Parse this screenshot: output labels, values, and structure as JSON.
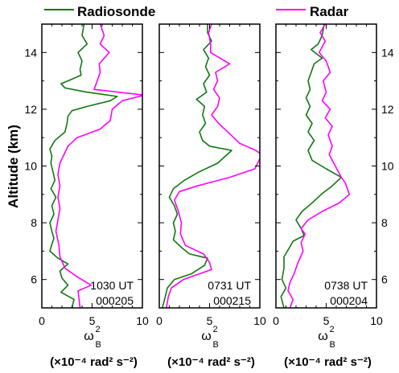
{
  "legend": {
    "radiosonde_label": "Radiosonde",
    "radar_label": "Radar",
    "radiosonde_color": "#117711",
    "radar_color": "#ff00ff"
  },
  "y_axis_label": "Altitude (km)",
  "chart_data": [
    {
      "type": "line",
      "time_label": "1030 UT",
      "date_label": "000205",
      "xlim": [
        0,
        10
      ],
      "ylim": [
        5,
        15
      ],
      "x_ticks": [
        "0",
        "5",
        "10"
      ],
      "y_ticks": [
        "6",
        "8",
        "10",
        "12",
        "14"
      ],
      "x_label_symbol": "ω",
      "x_label_sup": "2",
      "x_label_sub": "B",
      "x_label_units": "(×10⁻⁴ rad² s⁻²)",
      "series": [
        {
          "name": "Radiosonde",
          "points": [
            [
              4.2,
              15
            ],
            [
              4.0,
              14.6
            ],
            [
              4.5,
              14.3
            ],
            [
              3.6,
              14.0
            ],
            [
              4.0,
              13.7
            ],
            [
              3.8,
              13.4
            ],
            [
              3.9,
              13.2
            ],
            [
              2.6,
              13.0
            ],
            [
              1.9,
              12.9
            ],
            [
              2.3,
              12.75
            ],
            [
              4.5,
              12.6
            ],
            [
              7.5,
              12.45
            ],
            [
              6.8,
              12.3
            ],
            [
              4.5,
              12.1
            ],
            [
              3.0,
              11.95
            ],
            [
              2.6,
              11.75
            ],
            [
              2.5,
              11.5
            ],
            [
              2.3,
              11.2
            ],
            [
              1.3,
              10.9
            ],
            [
              0.8,
              10.6
            ],
            [
              1.0,
              10.35
            ],
            [
              0.9,
              10.1
            ],
            [
              1.1,
              9.8
            ],
            [
              1.3,
              9.5
            ],
            [
              0.9,
              9.2
            ],
            [
              1.4,
              8.9
            ],
            [
              1.0,
              8.6
            ],
            [
              1.2,
              8.3
            ],
            [
              0.8,
              8.0
            ],
            [
              1.0,
              7.7
            ],
            [
              1.2,
              7.45
            ],
            [
              1.0,
              7.25
            ],
            [
              0.8,
              7.0
            ],
            [
              1.6,
              6.75
            ],
            [
              2.6,
              6.55
            ],
            [
              1.8,
              6.3
            ],
            [
              2.0,
              6.05
            ],
            [
              2.6,
              5.8
            ],
            [
              1.9,
              5.55
            ],
            [
              3.2,
              5.3
            ],
            [
              3.0,
              5.0
            ]
          ]
        },
        {
          "name": "Radar",
          "points": [
            [
              5.8,
              15
            ],
            [
              6.2,
              14.6
            ],
            [
              5.8,
              14.3
            ],
            [
              6.7,
              14.0
            ],
            [
              5.7,
              13.6
            ],
            [
              5.8,
              13.3
            ],
            [
              5.5,
              13.0
            ],
            [
              5.2,
              12.7
            ],
            [
              10.2,
              12.5
            ],
            [
              8.0,
              12.3
            ],
            [
              7.0,
              12.0
            ],
            [
              6.8,
              11.6
            ],
            [
              5.8,
              11.3
            ],
            [
              3.5,
              11.0
            ],
            [
              2.6,
              10.7
            ],
            [
              2.2,
              10.4
            ],
            [
              1.8,
              10.1
            ],
            [
              1.6,
              9.7
            ],
            [
              1.8,
              9.3
            ],
            [
              1.6,
              8.9
            ],
            [
              1.8,
              8.5
            ],
            [
              1.6,
              8.1
            ],
            [
              1.4,
              7.7
            ],
            [
              1.7,
              7.2
            ],
            [
              1.8,
              6.8
            ],
            [
              2.3,
              6.4
            ],
            [
              3.5,
              6.1
            ],
            [
              4.9,
              5.8
            ],
            [
              3.6,
              5.6
            ],
            [
              3.7,
              5.3
            ],
            [
              3.8,
              5.0
            ]
          ]
        }
      ]
    },
    {
      "type": "line",
      "time_label": "0731 UT",
      "date_label": "000215",
      "xlim": [
        0,
        10
      ],
      "ylim": [
        5,
        15
      ],
      "x_ticks": [
        "0",
        "5",
        "10"
      ],
      "y_ticks": [
        "6",
        "8",
        "10",
        "12",
        "14"
      ],
      "x_label_symbol": "ω",
      "x_label_sup": "2",
      "x_label_sub": "B",
      "x_label_units": "(×10⁻⁴ rad² s⁻²)",
      "series": [
        {
          "name": "Radiosonde",
          "points": [
            [
              4.8,
              15
            ],
            [
              4.8,
              14.7
            ],
            [
              5.2,
              14.4
            ],
            [
              4.4,
              14.1
            ],
            [
              4.9,
              13.8
            ],
            [
              4.6,
              13.5
            ],
            [
              5.0,
              13.2
            ],
            [
              4.4,
              12.9
            ],
            [
              4.7,
              12.6
            ],
            [
              3.7,
              12.35
            ],
            [
              4.5,
              12.1
            ],
            [
              4.3,
              11.8
            ],
            [
              4.6,
              11.5
            ],
            [
              4.0,
              11.2
            ],
            [
              4.3,
              10.9
            ],
            [
              5.0,
              10.7
            ],
            [
              7.2,
              10.55
            ],
            [
              5.8,
              10.1
            ],
            [
              4.0,
              9.8
            ],
            [
              2.5,
              9.5
            ],
            [
              1.4,
              9.2
            ],
            [
              1.0,
              8.9
            ],
            [
              1.5,
              8.6
            ],
            [
              1.8,
              8.3
            ],
            [
              1.4,
              8.0
            ],
            [
              1.6,
              7.7
            ],
            [
              1.4,
              7.4
            ],
            [
              2.3,
              7.1
            ],
            [
              3.0,
              6.9
            ],
            [
              4.8,
              6.75
            ],
            [
              4.5,
              6.5
            ],
            [
              3.2,
              6.2
            ],
            [
              1.5,
              6.0
            ],
            [
              0.8,
              5.7
            ],
            [
              0.6,
              5.4
            ],
            [
              0.3,
              5.0
            ]
          ]
        },
        {
          "name": "Radar",
          "points": [
            [
              5.2,
              15
            ],
            [
              4.9,
              14.7
            ],
            [
              5.1,
              14.3
            ],
            [
              5.1,
              14.0
            ],
            [
              7.0,
              13.6
            ],
            [
              5.6,
              13.3
            ],
            [
              5.8,
              13.0
            ],
            [
              5.4,
              12.7
            ],
            [
              6.0,
              12.4
            ],
            [
              5.8,
              12.1
            ],
            [
              5.2,
              11.8
            ],
            [
              5.9,
              11.5
            ],
            [
              6.8,
              11.2
            ],
            [
              8.0,
              10.8
            ],
            [
              9.6,
              10.55
            ],
            [
              10.2,
              10.4
            ],
            [
              9.5,
              9.9
            ],
            [
              7.0,
              9.6
            ],
            [
              3.8,
              9.3
            ],
            [
              2.0,
              9.1
            ],
            [
              1.5,
              8.8
            ],
            [
              1.9,
              8.4
            ],
            [
              2.2,
              8.0
            ],
            [
              2.1,
              7.6
            ],
            [
              2.6,
              7.2
            ],
            [
              4.4,
              6.9
            ],
            [
              5.0,
              6.6
            ],
            [
              5.2,
              6.35
            ],
            [
              2.4,
              6.0
            ],
            [
              1.2,
              5.7
            ],
            [
              0.9,
              5.4
            ],
            [
              0.7,
              5.0
            ]
          ]
        }
      ]
    },
    {
      "type": "line",
      "time_label": "0738 UT",
      "date_label": "000204",
      "xlim": [
        0,
        10
      ],
      "ylim": [
        5,
        15
      ],
      "x_ticks": [
        "0",
        "5",
        "10"
      ],
      "y_ticks": [
        "6",
        "8",
        "10",
        "12",
        "14"
      ],
      "x_label_symbol": "ω",
      "x_label_sup": "2",
      "x_label_sub": "B",
      "x_label_units": "(×10⁻⁴ rad² s⁻²)",
      "series": [
        {
          "name": "Radiosonde",
          "points": [
            [
              4.8,
              15
            ],
            [
              4.6,
              14.6
            ],
            [
              4.2,
              14.3
            ],
            [
              3.5,
              14.1
            ],
            [
              4.6,
              13.8
            ],
            [
              3.8,
              13.6
            ],
            [
              3.5,
              13.3
            ],
            [
              3.2,
              13.0
            ],
            [
              3.4,
              12.7
            ],
            [
              3.0,
              12.4
            ],
            [
              3.4,
              12.1
            ],
            [
              3.0,
              11.8
            ],
            [
              3.6,
              11.5
            ],
            [
              3.2,
              11.2
            ],
            [
              3.8,
              10.9
            ],
            [
              3.2,
              10.55
            ],
            [
              3.6,
              10.2
            ],
            [
              5.0,
              9.9
            ],
            [
              6.5,
              9.6
            ],
            [
              5.6,
              9.3
            ],
            [
              4.5,
              9.0
            ],
            [
              3.6,
              8.7
            ],
            [
              2.6,
              8.4
            ],
            [
              2.0,
              8.1
            ],
            [
              2.5,
              7.8
            ],
            [
              2.8,
              7.55
            ],
            [
              1.7,
              7.35
            ],
            [
              1.3,
              7.1
            ],
            [
              0.8,
              6.8
            ],
            [
              0.8,
              6.4
            ],
            [
              0.6,
              6.0
            ],
            [
              1.0,
              5.7
            ],
            [
              0.5,
              5.4
            ],
            [
              0.8,
              5.0
            ]
          ]
        },
        {
          "name": "Radar",
          "points": [
            [
              4.9,
              15
            ],
            [
              4.4,
              14.7
            ],
            [
              4.9,
              14.4
            ],
            [
              4.3,
              14.0
            ],
            [
              5.0,
              13.7
            ],
            [
              5.4,
              13.3
            ],
            [
              4.7,
              13.0
            ],
            [
              5.0,
              12.6
            ],
            [
              4.6,
              12.3
            ],
            [
              5.4,
              12.0
            ],
            [
              4.9,
              11.7
            ],
            [
              5.6,
              11.4
            ],
            [
              5.2,
              11.1
            ],
            [
              5.6,
              10.7
            ],
            [
              5.3,
              10.4
            ],
            [
              5.9,
              10.0
            ],
            [
              6.5,
              9.6
            ],
            [
              6.9,
              9.4
            ],
            [
              7.3,
              9.0
            ],
            [
              6.3,
              8.7
            ],
            [
              4.6,
              8.4
            ],
            [
              3.2,
              8.1
            ],
            [
              2.5,
              7.8
            ],
            [
              2.9,
              7.6
            ],
            [
              2.5,
              7.3
            ],
            [
              2.7,
              7.0
            ],
            [
              2.2,
              6.6
            ],
            [
              1.8,
              6.2
            ],
            [
              1.4,
              5.9
            ],
            [
              1.2,
              5.6
            ],
            [
              1.7,
              5.3
            ],
            [
              1.4,
              5.0
            ]
          ]
        }
      ]
    }
  ]
}
